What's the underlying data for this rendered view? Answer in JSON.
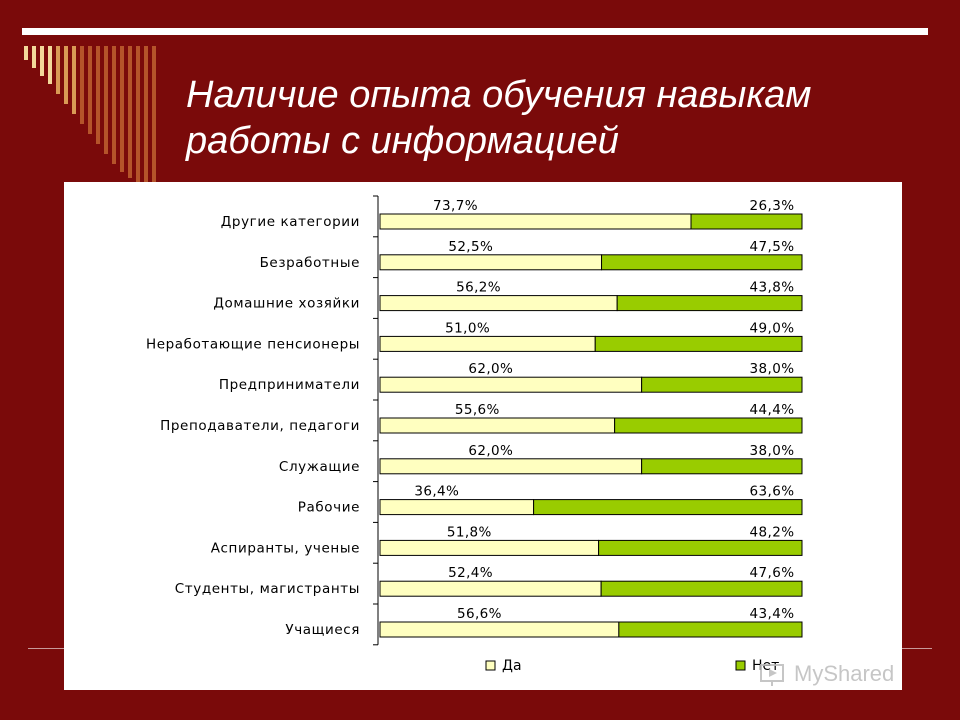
{
  "slide": {
    "title_line1": "Наличие опыта обучения навыкам",
    "title_line2": "работы с информацией",
    "watermark": "MyShared",
    "colors": {
      "background": "#7a0a0a",
      "stripe_light": "#f3d89a",
      "stripe_mid": "#d99a55",
      "stripe_dark": "#b5542a"
    }
  },
  "chart_data": {
    "type": "bar",
    "orientation": "horizontal",
    "stacked": true,
    "percent": true,
    "categories": [
      "Другие категории",
      "Безработные",
      "Домашние хозяйки",
      "Неработающие пенсионеры",
      "Предприниматели",
      "Преподаватели, педагоги",
      "Служащие",
      "Рабочие",
      "Аспиранты, ученые",
      "Студенты, магистранты",
      "Учащиеся"
    ],
    "series": [
      {
        "name": "Да",
        "color": "#ffffc0",
        "values": [
          73.7,
          52.5,
          56.2,
          51.0,
          62.0,
          55.6,
          62.0,
          36.4,
          51.8,
          52.4,
          56.6
        ],
        "labels": [
          "73,7%",
          "52,5%",
          "56,2%",
          "51,0%",
          "62,0%",
          "55,6%",
          "62,0%",
          "36,4%",
          "51,8%",
          "52,4%",
          "56,6%"
        ]
      },
      {
        "name": "Нет",
        "color": "#99cc00",
        "values": [
          26.3,
          47.5,
          43.8,
          49.0,
          38.0,
          44.4,
          38.0,
          63.6,
          48.2,
          47.6,
          43.4
        ],
        "labels": [
          "26,3%",
          "47,5%",
          "43,8%",
          "49,0%",
          "38,0%",
          "44,4%",
          "38,0%",
          "63,6%",
          "48,2%",
          "47,6%",
          "43,4%"
        ]
      }
    ],
    "xlim": [
      0,
      100
    ],
    "legend": "bottom",
    "grid": false
  }
}
